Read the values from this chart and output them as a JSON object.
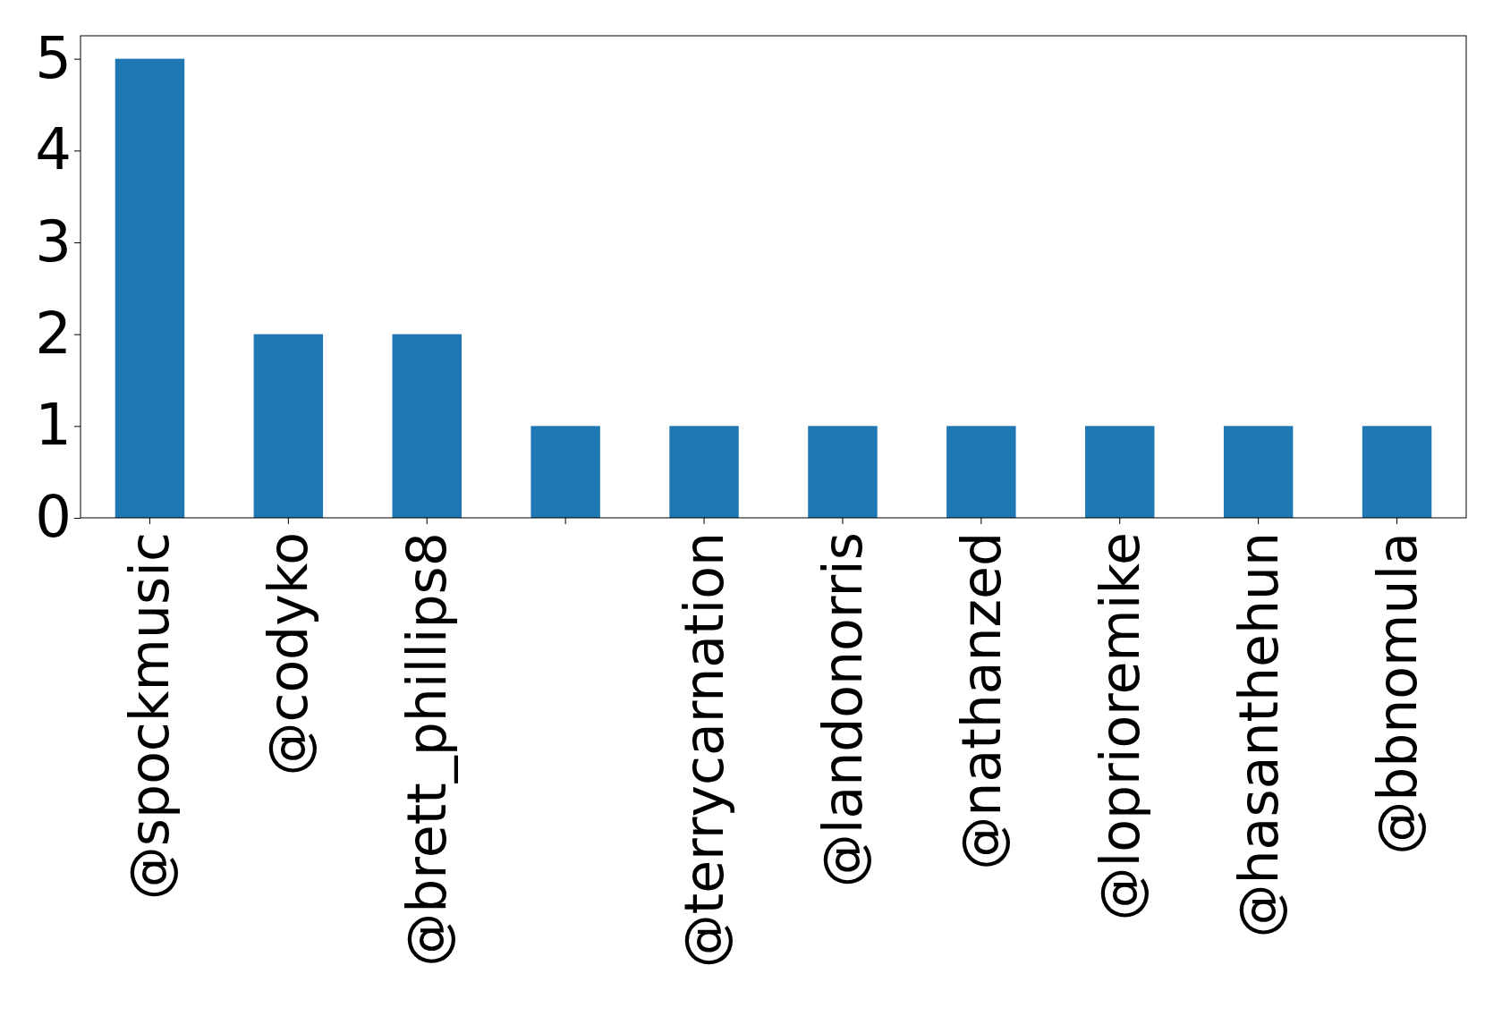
{
  "chart_data": {
    "type": "bar",
    "categories": [
      "@spockmusic",
      "@codyko",
      "@brett_phillips8",
      null,
      "@terrycarnation",
      "@landonorris",
      "@nathanzed",
      "@loprioremike",
      "@hasanthehun",
      "@bbnomula"
    ],
    "values": [
      5,
      2,
      2,
      1,
      1,
      1,
      1,
      1,
      1,
      1
    ],
    "color": "#1f77b4",
    "ylim": [
      0,
      5.25
    ],
    "yticks": [
      0,
      1,
      2,
      3,
      4,
      5
    ],
    "grid": false
  }
}
